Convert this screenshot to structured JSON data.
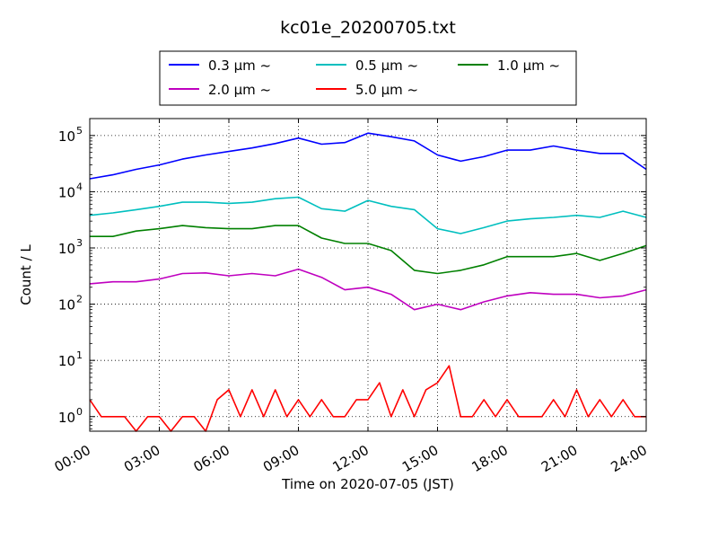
{
  "chart_data": {
    "type": "line",
    "title": "kc01e_20200705.txt",
    "xlabel": "Time on 2020-07-05 (JST)",
    "ylabel": "Count / L",
    "yscale": "log",
    "ylim": [
      0.55,
      200000
    ],
    "xlim": [
      "00:00",
      "24:00"
    ],
    "grid": true,
    "legend_position": "top, above plot",
    "x_ticks": [
      "00:00",
      "03:00",
      "06:00",
      "09:00",
      "12:00",
      "15:00",
      "18:00",
      "21:00",
      "24:00"
    ],
    "y_ticks": [
      {
        "value": 1,
        "label": "10",
        "exp": "0"
      },
      {
        "value": 10,
        "label": "10",
        "exp": "1"
      },
      {
        "value": 100,
        "label": "10",
        "exp": "2"
      },
      {
        "value": 1000,
        "label": "10",
        "exp": "3"
      },
      {
        "value": 10000,
        "label": "10",
        "exp": "4"
      },
      {
        "value": 100000,
        "label": "10",
        "exp": "5"
      }
    ],
    "series": [
      {
        "name": "0.3 μm ~",
        "color": "#0000ff",
        "x": [
          "00:00",
          "01:00",
          "02:00",
          "03:00",
          "04:00",
          "05:00",
          "06:00",
          "07:00",
          "08:00",
          "09:00",
          "10:00",
          "11:00",
          "12:00",
          "13:00",
          "14:00",
          "15:00",
          "16:00",
          "17:00",
          "18:00",
          "19:00",
          "20:00",
          "21:00",
          "22:00",
          "23:00",
          "24:00"
        ],
        "y": [
          17000,
          20000,
          25000,
          30000,
          38000,
          45000,
          52000,
          60000,
          72000,
          90000,
          70000,
          75000,
          110000,
          95000,
          80000,
          45000,
          35000,
          42000,
          55000,
          55000,
          65000,
          55000,
          48000,
          48000,
          25000
        ]
      },
      {
        "name": "0.5 μm ~",
        "color": "#00bfbf",
        "x": [
          "00:00",
          "01:00",
          "02:00",
          "03:00",
          "04:00",
          "05:00",
          "06:00",
          "07:00",
          "08:00",
          "09:00",
          "10:00",
          "11:00",
          "12:00",
          "13:00",
          "14:00",
          "15:00",
          "16:00",
          "17:00",
          "18:00",
          "19:00",
          "20:00",
          "21:00",
          "22:00",
          "23:00",
          "24:00"
        ],
        "y": [
          3800,
          4200,
          4800,
          5500,
          6500,
          6500,
          6200,
          6500,
          7500,
          8000,
          5000,
          4500,
          7000,
          5500,
          4800,
          2200,
          1800,
          2300,
          3000,
          3300,
          3500,
          3800,
          3500,
          4500,
          3500
        ]
      },
      {
        "name": "1.0 μm ~",
        "color": "#008000",
        "x": [
          "00:00",
          "01:00",
          "02:00",
          "03:00",
          "04:00",
          "05:00",
          "06:00",
          "07:00",
          "08:00",
          "09:00",
          "10:00",
          "11:00",
          "12:00",
          "13:00",
          "14:00",
          "15:00",
          "16:00",
          "17:00",
          "18:00",
          "19:00",
          "20:00",
          "21:00",
          "22:00",
          "23:00",
          "24:00"
        ],
        "y": [
          1600,
          1600,
          2000,
          2200,
          2500,
          2300,
          2200,
          2200,
          2500,
          2500,
          1500,
          1200,
          1200,
          900,
          400,
          350,
          400,
          500,
          700,
          700,
          700,
          800,
          600,
          800,
          1100
        ]
      },
      {
        "name": "2.0 μm ~",
        "color": "#bf00bf",
        "x": [
          "00:00",
          "01:00",
          "02:00",
          "03:00",
          "04:00",
          "05:00",
          "06:00",
          "07:00",
          "08:00",
          "09:00",
          "10:00",
          "11:00",
          "12:00",
          "13:00",
          "14:00",
          "15:00",
          "16:00",
          "17:00",
          "18:00",
          "19:00",
          "20:00",
          "21:00",
          "22:00",
          "23:00",
          "24:00"
        ],
        "y": [
          230,
          250,
          250,
          280,
          350,
          360,
          320,
          350,
          320,
          420,
          300,
          180,
          200,
          150,
          80,
          100,
          80,
          110,
          140,
          160,
          150,
          150,
          130,
          140,
          180
        ]
      },
      {
        "name": "5.0 μm ~",
        "color": "#ff0000",
        "x": [
          "00:00",
          "00:30",
          "01:00",
          "01:30",
          "02:00",
          "02:30",
          "03:00",
          "03:30",
          "04:00",
          "04:30",
          "05:00",
          "05:30",
          "06:00",
          "06:30",
          "07:00",
          "07:30",
          "08:00",
          "08:30",
          "09:00",
          "09:30",
          "10:00",
          "10:30",
          "11:00",
          "11:30",
          "12:00",
          "12:30",
          "13:00",
          "13:30",
          "14:00",
          "14:30",
          "15:00",
          "15:30",
          "16:00",
          "16:30",
          "17:00",
          "17:30",
          "18:00",
          "18:30",
          "19:00",
          "19:30",
          "20:00",
          "20:30",
          "21:00",
          "21:30",
          "22:00",
          "22:30",
          "23:00",
          "23:30",
          "24:00"
        ],
        "y": [
          2,
          1,
          1,
          1,
          0.55,
          1,
          1,
          0.55,
          1,
          1,
          0.55,
          2,
          3,
          1,
          3,
          1,
          3,
          1,
          2,
          1,
          2,
          1,
          1,
          2,
          2,
          4,
          1,
          3,
          1,
          3,
          4,
          8,
          1,
          1,
          2,
          1,
          2,
          1,
          1,
          1,
          2,
          1,
          3,
          1,
          2,
          1,
          2,
          1,
          1
        ]
      }
    ]
  }
}
